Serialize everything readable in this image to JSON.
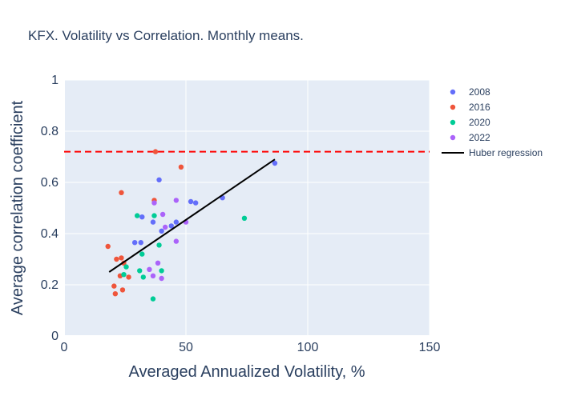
{
  "chart_data": {
    "type": "scatter",
    "title": "KFX. Volatility vs Correlation. Monthly means.",
    "xlabel": "Averaged Annualized Volatility, %",
    "ylabel": "Average correlation coefficient",
    "xlim": [
      0,
      150
    ],
    "ylim": [
      0,
      1
    ],
    "xticks": [
      0,
      50,
      100,
      150
    ],
    "yticks": [
      0,
      0.2,
      0.4,
      0.6,
      0.8,
      1
    ],
    "grid": true,
    "legend_position": "right",
    "series": [
      {
        "name": "2008",
        "color": "#636efa",
        "points": [
          [
            29,
            0.365
          ],
          [
            31.5,
            0.365
          ],
          [
            32,
            0.465
          ],
          [
            36.5,
            0.445
          ],
          [
            39,
            0.61
          ],
          [
            40,
            0.41
          ],
          [
            44,
            0.43
          ],
          [
            46,
            0.445
          ],
          [
            52,
            0.525
          ],
          [
            54,
            0.52
          ],
          [
            65,
            0.54
          ],
          [
            86.5,
            0.675
          ]
        ]
      },
      {
        "name": "2016",
        "color": "#ef553b",
        "points": [
          [
            18,
            0.35
          ],
          [
            20.5,
            0.195
          ],
          [
            21,
            0.165
          ],
          [
            21.5,
            0.3
          ],
          [
            23,
            0.235
          ],
          [
            23.5,
            0.305
          ],
          [
            23.5,
            0.56
          ],
          [
            24,
            0.18
          ],
          [
            24.5,
            0.285
          ],
          [
            26.5,
            0.23
          ],
          [
            37,
            0.53
          ],
          [
            37.5,
            0.72
          ],
          [
            48,
            0.66
          ]
        ]
      },
      {
        "name": "2020",
        "color": "#00cc96",
        "points": [
          [
            24.5,
            0.24
          ],
          [
            25.5,
            0.27
          ],
          [
            30,
            0.47
          ],
          [
            31,
            0.255
          ],
          [
            32,
            0.32
          ],
          [
            32.5,
            0.23
          ],
          [
            36.5,
            0.145
          ],
          [
            37,
            0.47
          ],
          [
            39,
            0.355
          ],
          [
            40,
            0.255
          ],
          [
            74,
            0.46
          ]
        ]
      },
      {
        "name": "2022",
        "color": "#ab63fa",
        "points": [
          [
            35,
            0.26
          ],
          [
            36.5,
            0.235
          ],
          [
            37,
            0.52
          ],
          [
            38.5,
            0.285
          ],
          [
            40,
            0.225
          ],
          [
            40.5,
            0.475
          ],
          [
            41.5,
            0.425
          ],
          [
            46,
            0.37
          ],
          [
            46,
            0.53
          ],
          [
            50,
            0.445
          ]
        ]
      }
    ],
    "reference_lines": [
      {
        "orientation": "horizontal",
        "y": 0.72,
        "color": "#ff0000",
        "style": "dashed"
      }
    ],
    "regression": {
      "name": "Huber regression",
      "color": "#000000",
      "x": [
        18.5,
        86.5
      ],
      "y": [
        0.25,
        0.69
      ]
    }
  }
}
